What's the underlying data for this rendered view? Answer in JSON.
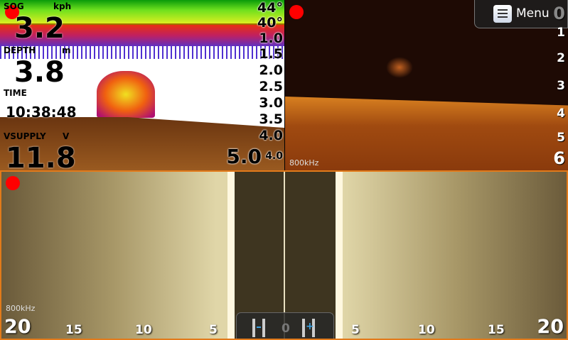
{
  "panel_traditional": {
    "temp_top": "44°",
    "temp_mid": "40°",
    "depth_scale": [
      "1.0",
      "1.5",
      "2.0",
      "2.5",
      "3.0",
      "3.5",
      "4.0"
    ],
    "depth_bottom": "5.0",
    "depth_bottom_overlay": "4.0",
    "fields": [
      {
        "label": "SOG",
        "unit": "kph",
        "value": "3.2"
      },
      {
        "label": "DEPTH",
        "unit": "m",
        "value": "3.8"
      },
      {
        "label": "TIME",
        "unit": "",
        "value": "10:38:48"
      },
      {
        "label": "VSUPPLY",
        "unit": "V",
        "value": "11.8"
      }
    ]
  },
  "panel_downscan": {
    "frequency": "800kHz",
    "depth_scale": [
      "0",
      "1",
      "2",
      "3",
      "4",
      "5",
      "6"
    ]
  },
  "menu": {
    "label": "Menu",
    "icon": "menu-icon"
  },
  "panel_sidescan": {
    "frequency": "800kHz",
    "range_left": [
      "20",
      "15",
      "10",
      "5"
    ],
    "range_right": [
      "5",
      "10",
      "15",
      "20"
    ],
    "center": "0"
  },
  "colors": {
    "record": "#ff0000",
    "active_border": "#e27a1a",
    "zoom_plus": "#3aa0e0"
  }
}
